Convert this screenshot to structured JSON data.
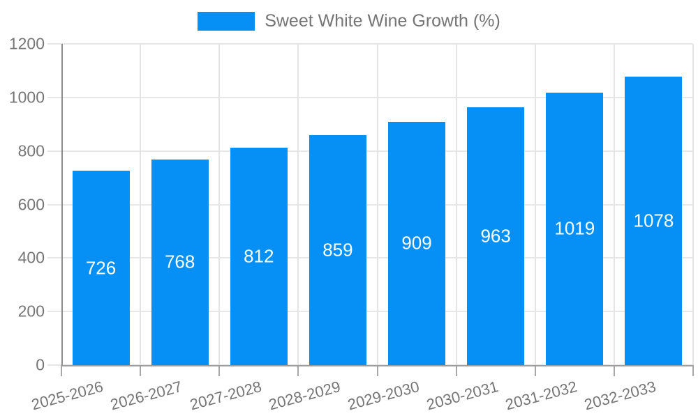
{
  "legend": {
    "items": [
      {
        "label": "Sweet White Wine Growth (%)",
        "color": "#0690f5"
      }
    ]
  },
  "chart_data": {
    "type": "bar",
    "title": "Sweet White Wine Growth (%)",
    "categories": [
      "2025-2026",
      "2026-2027",
      "2027-2028",
      "2028-2029",
      "2029-2030",
      "2030-2031",
      "2031-2032",
      "2032-2033"
    ],
    "series": [
      {
        "name": "Sweet White Wine Growth (%)",
        "values": [
          726,
          768,
          812,
          859,
          909,
          963,
          1019,
          1078
        ]
      }
    ],
    "values": [
      726,
      768,
      812,
      859,
      909,
      963,
      1019,
      1078
    ],
    "value_labels": [
      726,
      768,
      812,
      859,
      909,
      963,
      1019,
      1078
    ],
    "xlabel": "",
    "ylabel": "",
    "ylim": [
      0,
      1200
    ],
    "yticks": [
      0,
      200,
      400,
      600,
      800,
      1000,
      1200
    ],
    "grid": true,
    "legend_position": "top",
    "x_tick_rotation_deg": -15
  },
  "colors": {
    "background": "#ffffff",
    "bar": "#0690f5",
    "axis_line": "#8c8c8c",
    "gridline": "#e7e7e7",
    "tick_label": "#757575",
    "value_label": "#ffffff"
  }
}
